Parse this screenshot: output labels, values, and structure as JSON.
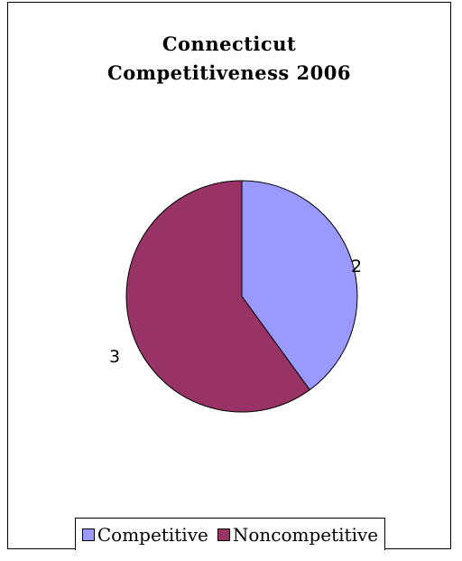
{
  "chart_data": {
    "type": "pie",
    "title_lines": [
      "Connecticut",
      "Competitiveness 2006"
    ],
    "categories": [
      "Competitive",
      "Noncompetitive"
    ],
    "values": [
      2,
      3
    ],
    "data_labels": [
      "2",
      "3"
    ],
    "colors": [
      "#9999ff",
      "#993366"
    ],
    "start_angle_deg": 0,
    "legend_position": "bottom"
  }
}
